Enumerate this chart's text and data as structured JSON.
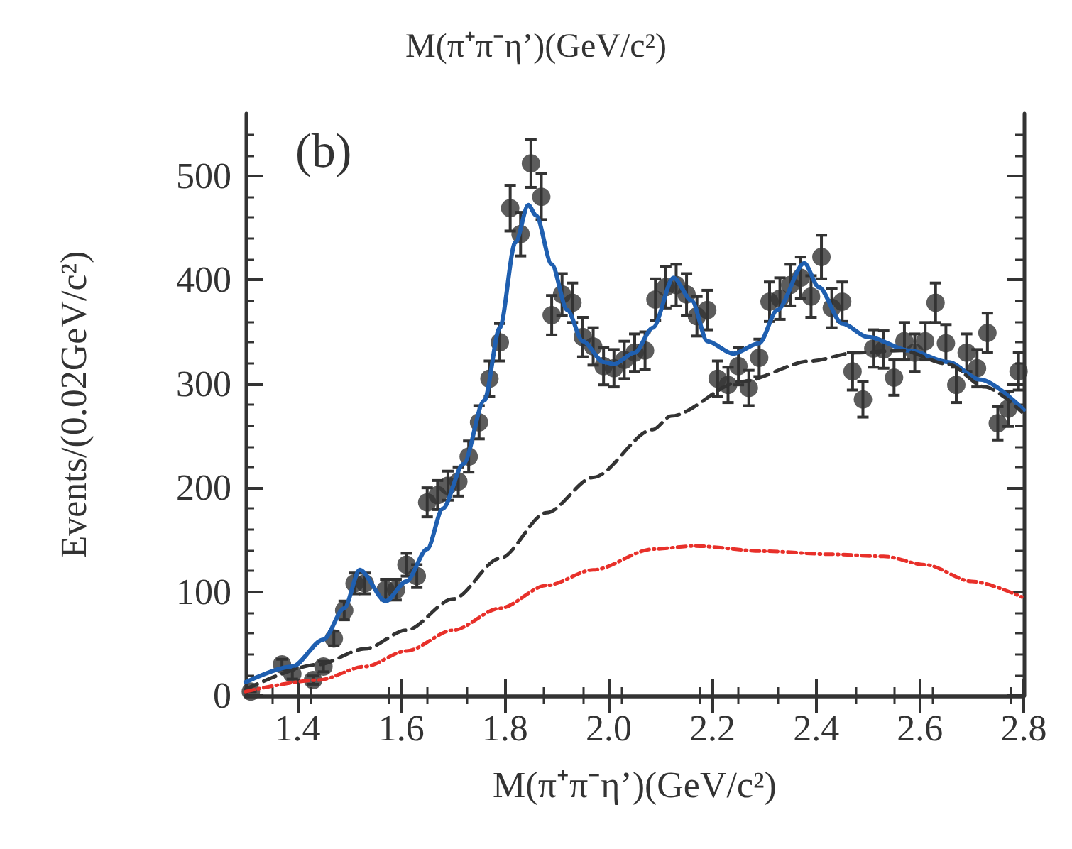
{
  "chart_data": {
    "type": "scatter",
    "title": "M(π⁺π⁻η’)(GeV/c²)",
    "xlabel": "M(π⁺π⁻η’)(GeV/c²)",
    "ylabel": "Events/(0.02GeV/c²)",
    "annotations": [
      "(b)"
    ],
    "xlim": [
      1.3,
      2.8
    ],
    "ylim": [
      0,
      560
    ],
    "xticks": [
      {
        "value": 1.4,
        "label": "1.4"
      },
      {
        "value": 1.6,
        "label": "1.6"
      },
      {
        "value": 1.8,
        "label": "1.8"
      },
      {
        "value": 2.0,
        "label": "2.0"
      },
      {
        "value": 2.2,
        "label": "2.2"
      },
      {
        "value": 2.4,
        "label": "2.4"
      },
      {
        "value": 2.6,
        "label": "2.6"
      },
      {
        "value": 2.8,
        "label": "2.8"
      }
    ],
    "yticks": [
      0,
      100,
      200,
      300,
      400,
      500
    ],
    "grid": false,
    "series": [
      {
        "color": "#333333",
        "marker": "circle",
        "x": [
          1.31,
          1.37,
          1.39,
          1.43,
          1.45,
          1.47,
          1.49,
          1.51,
          1.53,
          1.57,
          1.59,
          1.61,
          1.63,
          1.65,
          1.67,
          1.69,
          1.71,
          1.73,
          1.75,
          1.77,
          1.79,
          1.81,
          1.83,
          1.85,
          1.87,
          1.89,
          1.91,
          1.93,
          1.95,
          1.97,
          1.99,
          2.01,
          2.03,
          2.05,
          2.07,
          2.09,
          2.11,
          2.13,
          2.15,
          2.17,
          2.19,
          2.21,
          2.23,
          2.25,
          2.27,
          2.29,
          2.31,
          2.33,
          2.35,
          2.37,
          2.39,
          2.41,
          2.43,
          2.45,
          2.47,
          2.49,
          2.51,
          2.53,
          2.55,
          2.57,
          2.59,
          2.61,
          2.63,
          2.65,
          2.67,
          2.69,
          2.71,
          2.73,
          2.75,
          2.77,
          2.79
        ],
        "values": [
          4,
          30,
          21,
          15,
          28,
          55,
          82,
          108,
          108,
          102,
          102,
          126,
          115,
          186,
          193,
          202,
          206,
          230,
          263,
          305,
          340,
          469,
          444,
          512,
          480,
          366,
          386,
          378,
          345,
          336,
          317,
          315,
          323,
          330,
          332,
          381,
          393,
          395,
          386,
          365,
          371,
          305,
          299,
          317,
          296,
          325,
          379,
          382,
          395,
          402,
          384,
          422,
          373,
          379,
          312,
          285,
          334,
          333,
          306,
          341,
          330,
          341,
          378,
          339,
          299,
          330,
          315,
          349,
          262,
          276,
          312
        ],
        "errors": [
          null,
          5,
          5,
          4,
          5,
          7,
          9,
          10,
          10,
          10,
          10,
          11,
          11,
          14,
          14,
          14,
          14,
          15,
          16,
          17,
          18,
          22,
          21,
          23,
          22,
          19,
          20,
          19,
          19,
          18,
          18,
          18,
          18,
          18,
          18,
          20,
          20,
          20,
          20,
          19,
          19,
          17,
          17,
          18,
          17,
          18,
          19,
          20,
          20,
          20,
          20,
          21,
          19,
          19,
          18,
          17,
          18,
          18,
          17,
          18,
          18,
          18,
          19,
          18,
          17,
          18,
          18,
          19,
          16,
          17,
          18
        ]
      },
      {
        "type": "line",
        "color": "#1f5fb0",
        "marker": "none",
        "line_style": "solid",
        "x": [
          1.3,
          1.39,
          1.45,
          1.49,
          1.52,
          1.57,
          1.61,
          1.65,
          1.68,
          1.72,
          1.76,
          1.79,
          1.82,
          1.845,
          1.86,
          1.89,
          1.92,
          1.95,
          1.99,
          2.01,
          2.05,
          2.085,
          2.125,
          2.16,
          2.19,
          2.24,
          2.29,
          2.325,
          2.377,
          2.405,
          2.45,
          2.5,
          2.58,
          2.654,
          2.716,
          2.8
        ],
        "values": [
          13,
          28,
          54,
          84,
          121,
          91,
          110,
          141,
          180,
          223,
          284,
          354,
          436,
          472,
          462,
          415,
          371,
          341,
          321,
          319,
          330,
          354,
          402,
          380,
          341,
          329,
          339,
          371,
          416,
          393,
          358,
          345,
          332,
          321,
          304,
          275
        ]
      },
      {
        "type": "line",
        "color": "#333333",
        "marker": "none",
        "line_style": "dashed",
        "x": [
          1.3,
          1.44,
          1.53,
          1.61,
          1.7,
          1.79,
          1.88,
          1.97,
          2.085,
          2.12,
          2.254,
          2.39,
          2.476,
          2.565,
          2.654,
          2.725,
          2.796
        ],
        "values": [
          6,
          30,
          45,
          63,
          93,
          132,
          176,
          210,
          256,
          269,
          302,
          322,
          330,
          332,
          319,
          297,
          273
        ]
      },
      {
        "type": "line",
        "color": "#e8302a",
        "marker": "none",
        "line_style": "dotted",
        "x": [
          1.3,
          1.44,
          1.53,
          1.61,
          1.7,
          1.79,
          1.88,
          1.97,
          2.085,
          2.165,
          2.3,
          2.43,
          2.53,
          2.61,
          2.7,
          2.796
        ],
        "values": [
          4,
          15,
          28,
          43,
          63,
          84,
          106,
          121,
          141,
          144,
          139,
          136,
          134,
          126,
          110,
          95
        ]
      }
    ]
  }
}
